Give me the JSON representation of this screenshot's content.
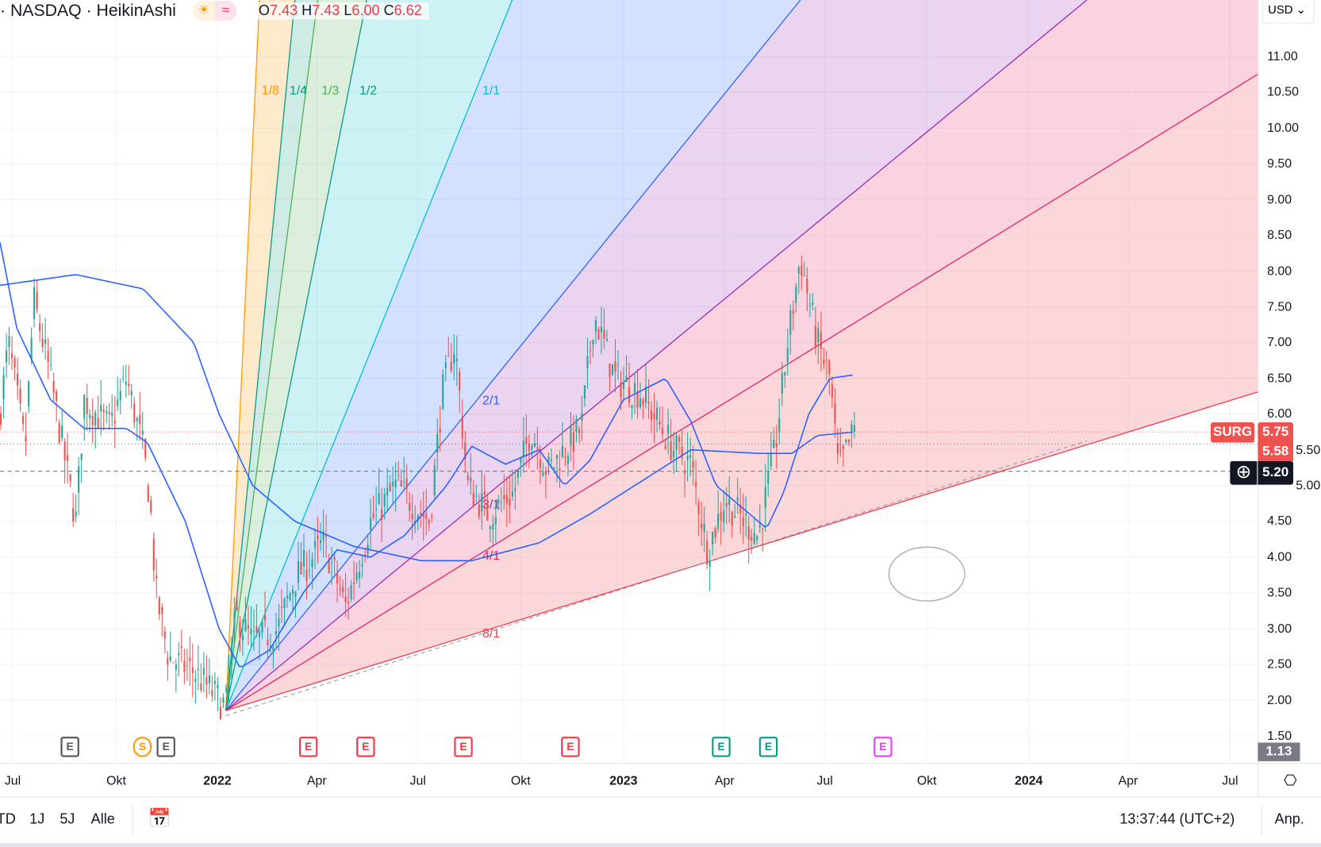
{
  "header": {
    "symbol_line": "· NASDAQ · HeikinAshi",
    "badge_icons": [
      "sun-icon",
      "wave-icon"
    ],
    "ohlc": {
      "o_label": "O",
      "o": "7.43",
      "h_label": "H",
      "h": "7.43",
      "l_label": "L",
      "l": "6.00",
      "c_label": "C",
      "c": "6.62"
    }
  },
  "price_axis": {
    "currency": "USD",
    "labels": [
      "11.00",
      "10.50",
      "10.00",
      "9.50",
      "9.00",
      "8.50",
      "8.00",
      "7.50",
      "7.00",
      "6.50",
      "6.00",
      "5.50",
      "5.00",
      "4.50",
      "4.00",
      "3.50",
      "3.00",
      "2.50",
      "2.00",
      "1.50"
    ],
    "symbol_tag": "SURG",
    "last_price": "5.75",
    "prev_price": "5.58",
    "crosshair_price": "5.20",
    "low_tag": "1.13"
  },
  "time_axis": {
    "labels": [
      {
        "t": "Jul",
        "bold": false
      },
      {
        "t": "Okt",
        "bold": false
      },
      {
        "t": "2022",
        "bold": true
      },
      {
        "t": "Apr",
        "bold": false
      },
      {
        "t": "Jul",
        "bold": false
      },
      {
        "t": "Okt",
        "bold": false
      },
      {
        "t": "2023",
        "bold": true
      },
      {
        "t": "Apr",
        "bold": false
      },
      {
        "t": "Jul",
        "bold": false
      },
      {
        "t": "Okt",
        "bold": false
      },
      {
        "t": "2024",
        "bold": true
      },
      {
        "t": "Apr",
        "bold": false
      },
      {
        "t": "Jul",
        "bold": false
      }
    ]
  },
  "gann_fan": {
    "labels": [
      "1/8",
      "1/4",
      "1/3",
      "1/2",
      "1/1",
      "2/1",
      "3/1",
      "4/1",
      "8/1"
    ],
    "colors": [
      "#ff9800",
      "#089981",
      "#4caf50",
      "#089981",
      "#00bcd4",
      "#2962ff",
      "#9c27b0",
      "#e91e63",
      "#f23645"
    ]
  },
  "events": [
    {
      "t": "E",
      "color": "#50535e"
    },
    {
      "t": "S",
      "color": "#ff9800"
    },
    {
      "t": "E",
      "color": "#50535e"
    },
    {
      "t": "E",
      "color": "#f23645"
    },
    {
      "t": "E",
      "color": "#f23645"
    },
    {
      "t": "E",
      "color": "#f23645"
    },
    {
      "t": "E",
      "color": "#f23645"
    },
    {
      "t": "E",
      "color": "#089981"
    },
    {
      "t": "E",
      "color": "#089981"
    },
    {
      "t": "E",
      "color": "#e040fb"
    }
  ],
  "bottom_bar": {
    "ranges": [
      "TD",
      "1J",
      "5J",
      "Alle"
    ],
    "clock": "13:37:44 (UTC+2)",
    "adjust": "Anp."
  },
  "chart_data": {
    "type": "candlestick",
    "style": "HeikinAshi",
    "approx_price_path": [
      [
        "2021-06",
        6.0
      ],
      [
        "2021-10",
        6.5
      ],
      [
        "2021-11",
        3.5
      ],
      [
        "2022-01",
        1.9
      ],
      [
        "2022-04",
        4.2
      ],
      [
        "2022-05",
        3.3
      ],
      [
        "2022-08",
        7.0
      ],
      [
        "2022-09",
        4.6
      ],
      [
        "2022-11",
        7.4
      ],
      [
        "2023-01",
        5.5
      ],
      [
        "2023-03",
        4.1
      ],
      [
        "2023-05",
        4.3
      ],
      [
        "2023-06",
        8.2
      ],
      [
        "2023-07",
        5.2
      ],
      [
        "2023-08",
        5.75
      ]
    ],
    "colors": {
      "up": "#26a69a",
      "down": "#ef5350",
      "ma": "#2962ff"
    }
  }
}
